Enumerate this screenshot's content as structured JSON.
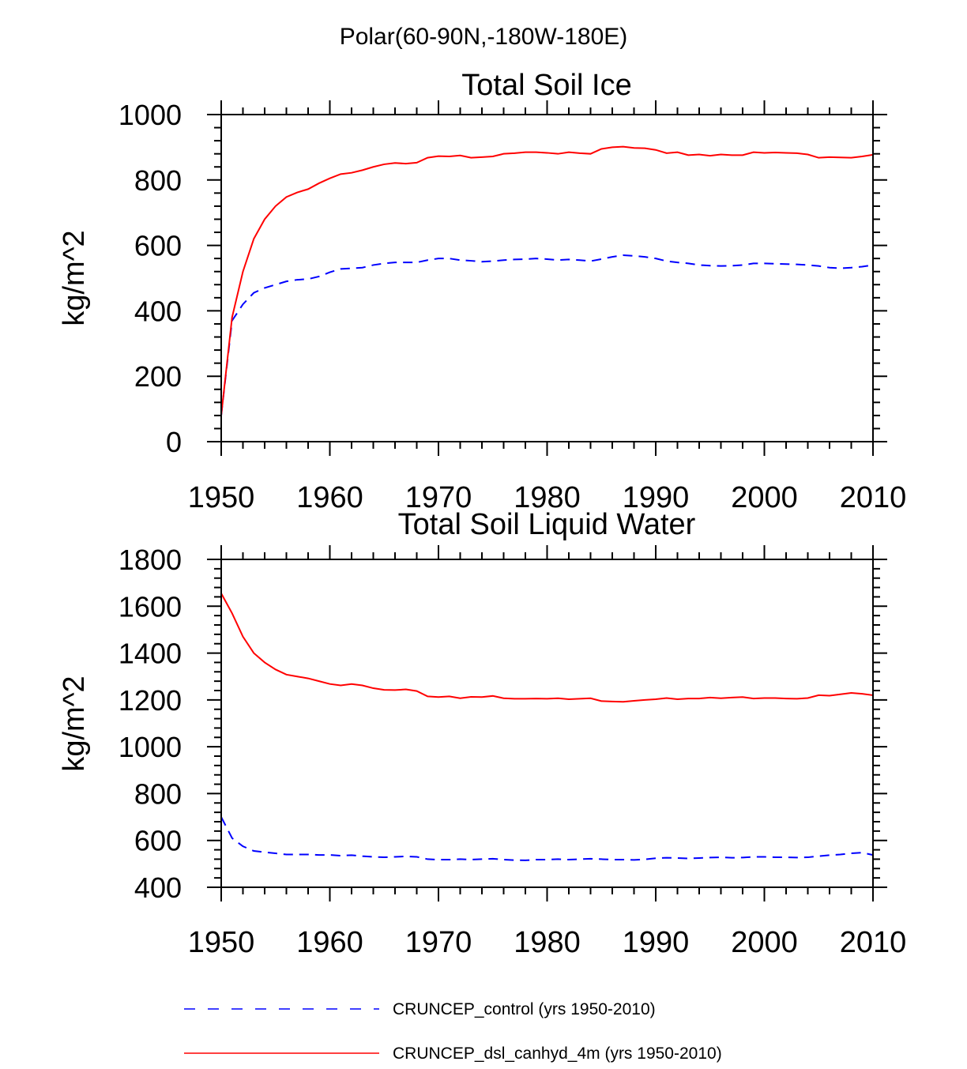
{
  "suptitle": "Polar(60-90N,-180W-180E)",
  "colors": {
    "control": "#0000ff",
    "dsl": "#ff0000",
    "axis": "#000000"
  },
  "legend": [
    {
      "label": "CRUNCEP_control (yrs 1950-2010)",
      "style": "dashed",
      "color": "#0000ff"
    },
    {
      "label": "CRUNCEP_dsl_canhyd_4m (yrs 1950-2010)",
      "style": "solid",
      "color": "#ff0000"
    }
  ],
  "chart_data": [
    {
      "type": "line",
      "title": "Total Soil Ice",
      "xlabel": "",
      "ylabel": "kg/m^2",
      "xlim": [
        1950,
        2010
      ],
      "ylim": [
        0,
        1000
      ],
      "xticks": [
        1950,
        1960,
        1970,
        1980,
        1990,
        2000,
        2010
      ],
      "yticks": [
        0,
        200,
        400,
        600,
        800,
        1000
      ],
      "x": [
        1950,
        1951,
        1952,
        1953,
        1954,
        1955,
        1956,
        1957,
        1958,
        1959,
        1960,
        1961,
        1962,
        1963,
        1964,
        1965,
        1966,
        1967,
        1968,
        1969,
        1970,
        1971,
        1972,
        1973,
        1974,
        1975,
        1976,
        1977,
        1978,
        1979,
        1980,
        1981,
        1982,
        1983,
        1984,
        1985,
        1986,
        1987,
        1988,
        1989,
        1990,
        1991,
        1992,
        1993,
        1994,
        1995,
        1996,
        1997,
        1998,
        1999,
        2000,
        2001,
        2002,
        2003,
        2004,
        2005,
        2006,
        2007,
        2008,
        2009,
        2010
      ],
      "series": [
        {
          "name": "CRUNCEP_control (yrs 1950-2010)",
          "values": [
            80,
            370,
            420,
            455,
            470,
            480,
            490,
            495,
            497,
            505,
            518,
            528,
            530,
            532,
            540,
            545,
            548,
            548,
            548,
            555,
            560,
            560,
            555,
            553,
            550,
            552,
            555,
            557,
            558,
            560,
            558,
            555,
            557,
            555,
            552,
            558,
            565,
            570,
            568,
            565,
            560,
            552,
            548,
            545,
            540,
            538,
            537,
            538,
            540,
            545,
            545,
            544,
            543,
            542,
            540,
            537,
            532,
            530,
            532,
            535,
            540
          ]
        },
        {
          "name": "CRUNCEP_dsl_canhyd_4m (yrs 1950-2010)",
          "values": [
            80,
            380,
            520,
            620,
            680,
            720,
            748,
            762,
            772,
            790,
            805,
            818,
            822,
            830,
            840,
            848,
            852,
            850,
            853,
            868,
            873,
            872,
            875,
            868,
            870,
            872,
            880,
            882,
            885,
            885,
            883,
            880,
            885,
            882,
            880,
            895,
            900,
            902,
            898,
            897,
            892,
            882,
            885,
            876,
            878,
            874,
            878,
            876,
            876,
            885,
            883,
            884,
            883,
            882,
            878,
            868,
            870,
            869,
            868,
            872,
            877
          ]
        }
      ]
    },
    {
      "type": "line",
      "title": "Total Soil Liquid Water",
      "xlabel": "",
      "ylabel": "kg/m^2",
      "xlim": [
        1950,
        2010
      ],
      "ylim": [
        400,
        1800
      ],
      "xticks": [
        1950,
        1960,
        1970,
        1980,
        1990,
        2000,
        2010
      ],
      "yticks": [
        400,
        600,
        800,
        1000,
        1200,
        1400,
        1600,
        1800
      ],
      "x": [
        1950,
        1951,
        1952,
        1953,
        1954,
        1955,
        1956,
        1957,
        1958,
        1959,
        1960,
        1961,
        1962,
        1963,
        1964,
        1965,
        1966,
        1967,
        1968,
        1969,
        1970,
        1971,
        1972,
        1973,
        1974,
        1975,
        1976,
        1977,
        1978,
        1979,
        1980,
        1981,
        1982,
        1983,
        1984,
        1985,
        1986,
        1987,
        1988,
        1989,
        1990,
        1991,
        1992,
        1993,
        1994,
        1995,
        1996,
        1997,
        1998,
        1999,
        2000,
        2001,
        2002,
        2003,
        2004,
        2005,
        2006,
        2007,
        2008,
        2009,
        2010
      ],
      "series": [
        {
          "name": "CRUNCEP_control (yrs 1950-2010)",
          "values": [
            700,
            610,
            575,
            555,
            550,
            545,
            540,
            540,
            540,
            538,
            538,
            535,
            537,
            533,
            530,
            528,
            530,
            532,
            530,
            520,
            518,
            518,
            520,
            518,
            520,
            522,
            518,
            516,
            515,
            518,
            518,
            520,
            518,
            520,
            522,
            520,
            518,
            518,
            517,
            519,
            524,
            526,
            525,
            523,
            525,
            527,
            528,
            526,
            527,
            530,
            530,
            528,
            528,
            527,
            528,
            533,
            537,
            540,
            545,
            548,
            538
          ]
        },
        {
          "name": "CRUNCEP_dsl_canhyd_4m (yrs 1950-2010)",
          "values": [
            1655,
            1570,
            1470,
            1400,
            1360,
            1330,
            1308,
            1300,
            1292,
            1280,
            1268,
            1262,
            1268,
            1262,
            1250,
            1243,
            1242,
            1245,
            1238,
            1215,
            1212,
            1215,
            1207,
            1213,
            1212,
            1217,
            1207,
            1205,
            1205,
            1206,
            1205,
            1207,
            1203,
            1205,
            1207,
            1195,
            1193,
            1192,
            1196,
            1200,
            1203,
            1208,
            1203,
            1206,
            1206,
            1210,
            1207,
            1210,
            1212,
            1206,
            1208,
            1208,
            1206,
            1205,
            1208,
            1220,
            1218,
            1224,
            1230,
            1226,
            1220
          ]
        }
      ]
    }
  ]
}
